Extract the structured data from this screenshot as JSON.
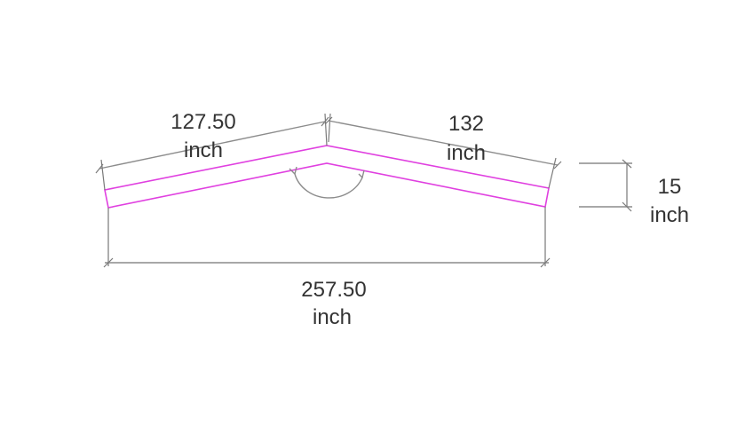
{
  "diagram": {
    "left_dimension": {
      "value": "127.50",
      "unit": "inch"
    },
    "right_dimension": {
      "value": "132",
      "unit": "inch"
    },
    "thickness_dimension": {
      "value": "15",
      "unit": "inch"
    },
    "span_dimension": {
      "value": "257.50",
      "unit": "inch"
    },
    "colors": {
      "shape_outline": "#e040e0",
      "dimension_lines": "#8c8c8c",
      "text": "#333333"
    }
  }
}
